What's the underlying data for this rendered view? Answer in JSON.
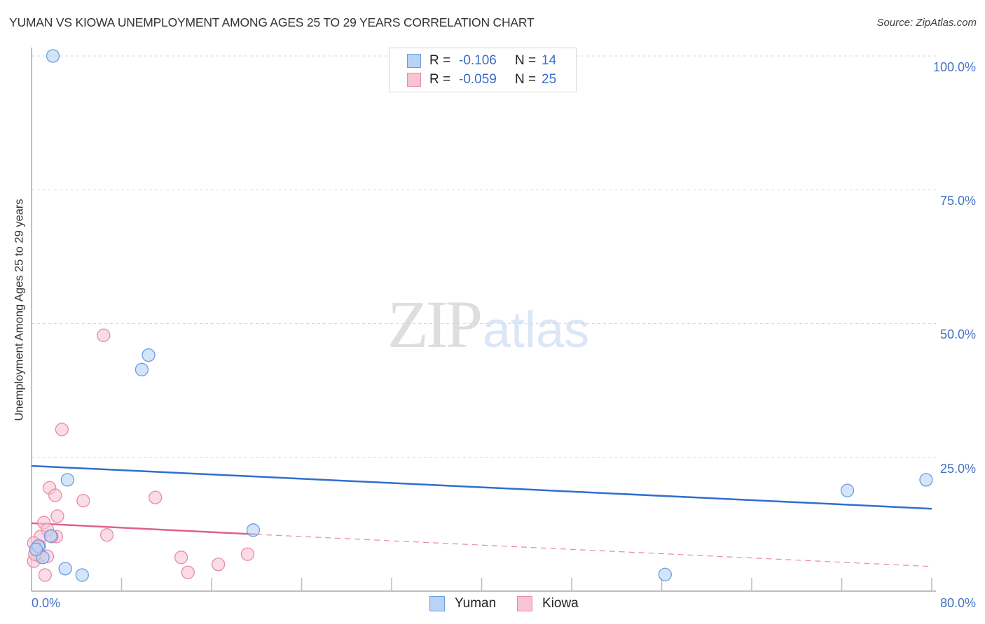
{
  "header": {
    "title": "YUMAN VS KIOWA UNEMPLOYMENT AMONG AGES 25 TO 29 YEARS CORRELATION CHART",
    "source": "Source: ZipAtlas.com"
  },
  "watermark": {
    "zip": "ZIP",
    "atlas": "atlas"
  },
  "legend": {
    "rows": [
      {
        "series": "Yuman",
        "r_label": "R =",
        "r_value": "-0.106",
        "n_label": "N =",
        "n_value": "14"
      },
      {
        "series": "Kiowa",
        "r_label": "R =",
        "r_value": "-0.059",
        "n_label": "N =",
        "n_value": "25"
      }
    ]
  },
  "bottom_legend": [
    {
      "label": "Yuman"
    },
    {
      "label": "Kiowa"
    }
  ],
  "axes": {
    "y_ticks": [
      "100.0%",
      "75.0%",
      "50.0%",
      "25.0%"
    ],
    "x_ticks": [
      "0.0%",
      "80.0%"
    ],
    "ylabel": "Unemployment Among Ages 25 to 29 years"
  },
  "colors": {
    "yuman_fill": "#b8d3f5",
    "yuman_stroke": "#6a9de0",
    "yuman_line": "#2f6fcf",
    "kiowa_fill": "#f8c3d3",
    "kiowa_stroke": "#e88aa8",
    "kiowa_line": "#e0608e",
    "tick_label": "#4472c4"
  },
  "chart_data": {
    "type": "scatter",
    "title": "YUMAN VS KIOWA UNEMPLOYMENT AMONG AGES 25 TO 29 YEARS CORRELATION CHART",
    "xlabel": "",
    "ylabel": "Unemployment Among Ages 25 to 29 years",
    "xlim": [
      0,
      80
    ],
    "ylim": [
      0,
      100
    ],
    "x_tick_labels": [
      "0.0%",
      "80.0%"
    ],
    "y_tick_labels": [
      "25.0%",
      "50.0%",
      "75.0%",
      "100.0%"
    ],
    "grid": "horizontal dashed at 25, 50, 75, 100",
    "legend_position": "top-center and bottom-center",
    "series": [
      {
        "name": "Yuman",
        "r": -0.106,
        "n": 14,
        "points": [
          [
            1.9,
            100.0
          ],
          [
            10.4,
            44.1
          ],
          [
            9.8,
            41.4
          ],
          [
            3.2,
            20.8
          ],
          [
            72.5,
            18.8
          ],
          [
            79.5,
            20.8
          ],
          [
            19.7,
            11.4
          ],
          [
            1.7,
            10.3
          ],
          [
            0.6,
            8.4
          ],
          [
            1.0,
            6.3
          ],
          [
            3.0,
            4.2
          ],
          [
            4.5,
            3.0
          ],
          [
            56.3,
            3.1
          ],
          [
            0.4,
            7.8
          ]
        ],
        "trend": {
          "x": [
            0,
            80
          ],
          "y": [
            23.4,
            15.4
          ],
          "style": "solid"
        }
      },
      {
        "name": "Kiowa",
        "r": -0.059,
        "n": 25,
        "points": [
          [
            6.4,
            47.8
          ],
          [
            2.7,
            30.2
          ],
          [
            1.6,
            19.3
          ],
          [
            2.1,
            17.9
          ],
          [
            4.6,
            16.9
          ],
          [
            11.0,
            17.5
          ],
          [
            2.3,
            14.0
          ],
          [
            1.1,
            12.8
          ],
          [
            1.4,
            11.5
          ],
          [
            6.7,
            10.5
          ],
          [
            0.8,
            10.2
          ],
          [
            2.2,
            10.2
          ],
          [
            1.8,
            10.2
          ],
          [
            0.4,
            7.8
          ],
          [
            0.7,
            6.5
          ],
          [
            1.4,
            6.5
          ],
          [
            0.2,
            5.6
          ],
          [
            0.3,
            6.9
          ],
          [
            13.3,
            6.3
          ],
          [
            19.2,
            6.9
          ],
          [
            16.6,
            5.0
          ],
          [
            13.9,
            3.5
          ],
          [
            1.2,
            3.0
          ],
          [
            0.7,
            8.4
          ],
          [
            0.2,
            9.0
          ]
        ],
        "trend": {
          "x": [
            0,
            20,
            80
          ],
          "y": [
            12.7,
            10.6,
            4.6
          ],
          "style": "solid to x=20, dashed beyond"
        }
      }
    ]
  }
}
